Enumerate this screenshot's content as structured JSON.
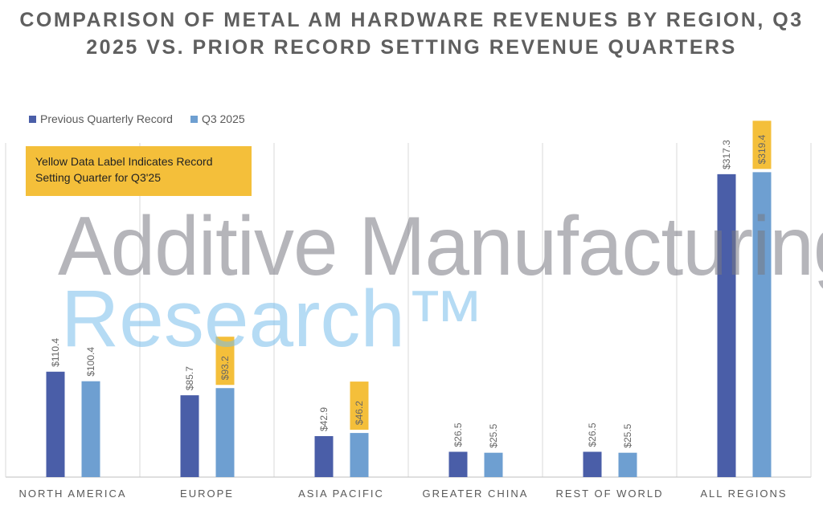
{
  "chart_data": {
    "type": "bar",
    "title": "COMPARISON OF METAL AM HARDWARE REVENUES BY REGION, Q3 2025 VS. PRIOR RECORD SETTING REVENUE QUARTERS",
    "categories": [
      "NORTH AMERICA",
      "EUROPE",
      "ASIA PACIFIC",
      "GREATER CHINA",
      "REST OF WORLD",
      "ALL REGIONS"
    ],
    "series": [
      {
        "name": "Previous Quarterly Record",
        "color": "#4a5ea8",
        "values": [
          110.4,
          85.7,
          42.9,
          26.5,
          26.5,
          317.3
        ],
        "labels": [
          "$110.4",
          "$85.7",
          "$42.9",
          "$26.5",
          "$26.5",
          "$317.3"
        ]
      },
      {
        "name": "Q3 2025",
        "color": "#6e9fd1",
        "values": [
          100.4,
          93.2,
          46.2,
          25.5,
          25.5,
          319.4
        ],
        "labels": [
          "$100.4",
          "$93.2",
          "$46.2",
          "$25.5",
          "$25.5",
          "$319.4"
        ],
        "record_highlight": [
          false,
          true,
          true,
          false,
          false,
          true
        ]
      }
    ],
    "ylim": [
      0,
      350
    ],
    "legend": "top-left",
    "grid": "vertical category separators",
    "highlight_color": "#f4bf3a",
    "annotation": "Yellow Data Label Indicates Record Setting Quarter for Q3'25"
  },
  "watermark": {
    "line1": "Additive Manufacturing",
    "line2": "Research™"
  }
}
